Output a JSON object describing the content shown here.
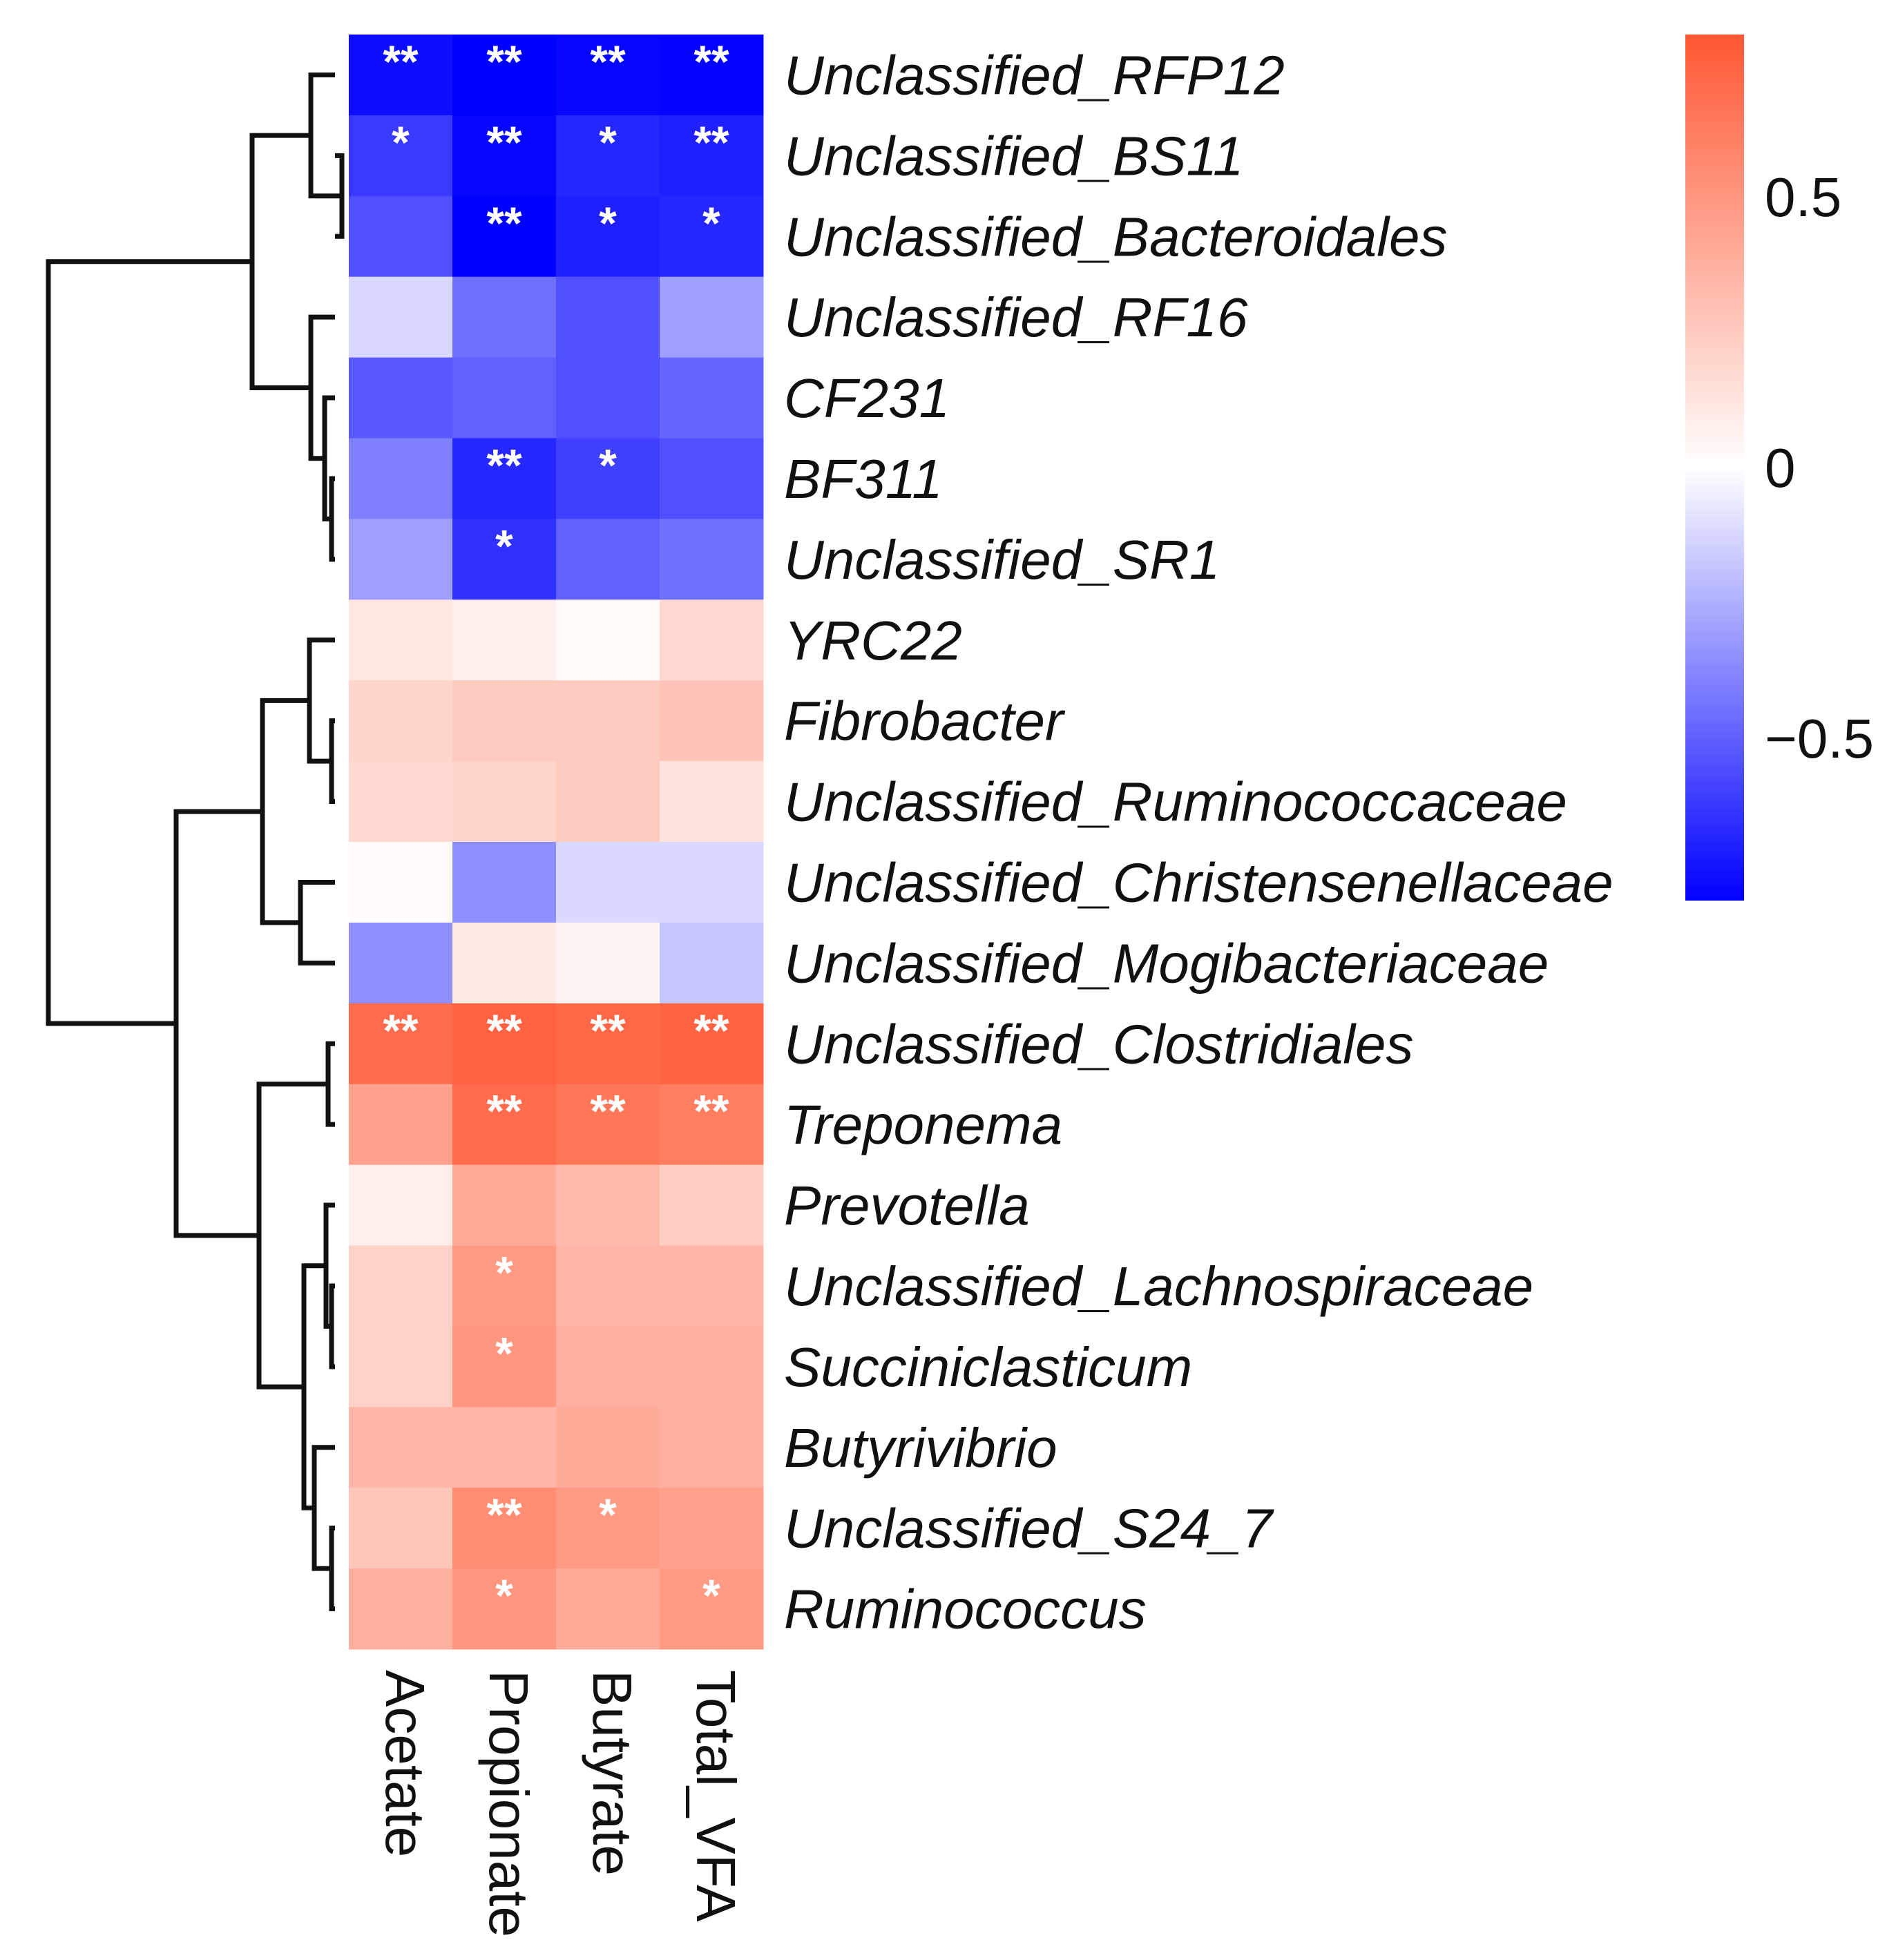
{
  "chart_data": {
    "type": "heatmap",
    "title": "",
    "columns": [
      "Acetate",
      "Propionate",
      "Butyrate",
      "Total_VFA"
    ],
    "rows": [
      "Unclassified_RFP12",
      "Unclassified_BS11",
      "Unclassified_Bacteroidales",
      "Unclassified_RF16",
      "CF231",
      "BF311",
      "Unclassified_SR1",
      "YRC22",
      "Fibrobacter",
      "Unclassified_Ruminococcaceae",
      "Unclassified_Christensenellaceae",
      "Unclassified_Mogibacteriaceae",
      "Unclassified_Clostridiales",
      "Treponema",
      "Prevotella",
      "Unclassified_Lachnospiraceae",
      "Succiniclasticum",
      "Butyrivibrio",
      "Unclassified_S24_7",
      "Ruminococcus"
    ],
    "values": [
      [
        -0.76,
        -0.8,
        -0.78,
        -0.79
      ],
      [
        -0.62,
        -0.78,
        -0.68,
        -0.7
      ],
      [
        -0.55,
        -0.8,
        -0.7,
        -0.68
      ],
      [
        -0.12,
        -0.45,
        -0.55,
        -0.3
      ],
      [
        -0.52,
        -0.5,
        -0.55,
        -0.48
      ],
      [
        -0.4,
        -0.68,
        -0.6,
        -0.55
      ],
      [
        -0.3,
        -0.65,
        -0.5,
        -0.45
      ],
      [
        0.12,
        0.08,
        0.03,
        0.18
      ],
      [
        0.2,
        0.25,
        0.25,
        0.28
      ],
      [
        0.18,
        0.2,
        0.25,
        0.14
      ],
      [
        0.02,
        -0.35,
        -0.12,
        -0.12
      ],
      [
        -0.35,
        0.1,
        0.05,
        -0.18
      ],
      [
        0.7,
        0.75,
        0.72,
        0.74
      ],
      [
        0.45,
        0.7,
        0.65,
        0.62
      ],
      [
        0.08,
        0.4,
        0.33,
        0.23
      ],
      [
        0.22,
        0.48,
        0.35,
        0.35
      ],
      [
        0.22,
        0.5,
        0.38,
        0.37
      ],
      [
        0.35,
        0.35,
        0.4,
        0.38
      ],
      [
        0.27,
        0.55,
        0.48,
        0.45
      ],
      [
        0.38,
        0.5,
        0.4,
        0.48
      ]
    ],
    "significance": [
      [
        "**",
        "**",
        "**",
        "**"
      ],
      [
        "*",
        "**",
        "*",
        "**"
      ],
      [
        "",
        "**",
        "*",
        "*"
      ],
      [
        "",
        "",
        "",
        ""
      ],
      [
        "",
        "",
        "",
        ""
      ],
      [
        "",
        "**",
        "*",
        ""
      ],
      [
        "",
        "*",
        "",
        ""
      ],
      [
        "",
        "",
        "",
        ""
      ],
      [
        "",
        "",
        "",
        ""
      ],
      [
        "",
        "",
        "",
        ""
      ],
      [
        "",
        "",
        "",
        ""
      ],
      [
        "",
        "",
        "",
        ""
      ],
      [
        "**",
        "**",
        "**",
        "**"
      ],
      [
        "",
        "**",
        "**",
        "**"
      ],
      [
        "",
        "",
        "",
        ""
      ],
      [
        "",
        "*",
        "",
        ""
      ],
      [
        "",
        "*",
        "",
        ""
      ],
      [
        "",
        "",
        "",
        ""
      ],
      [
        "",
        "**",
        "*",
        ""
      ],
      [
        "",
        "*",
        "",
        "*"
      ]
    ],
    "color_scale": {
      "min": -0.8,
      "max": 0.8,
      "low_color": "#0000ff",
      "mid_color": "#ffffff",
      "high_color": "#ff5733",
      "ticks": [
        0.5,
        0,
        -0.5
      ],
      "tick_labels": [
        "0.5",
        "0",
        "−0.5"
      ]
    }
  }
}
